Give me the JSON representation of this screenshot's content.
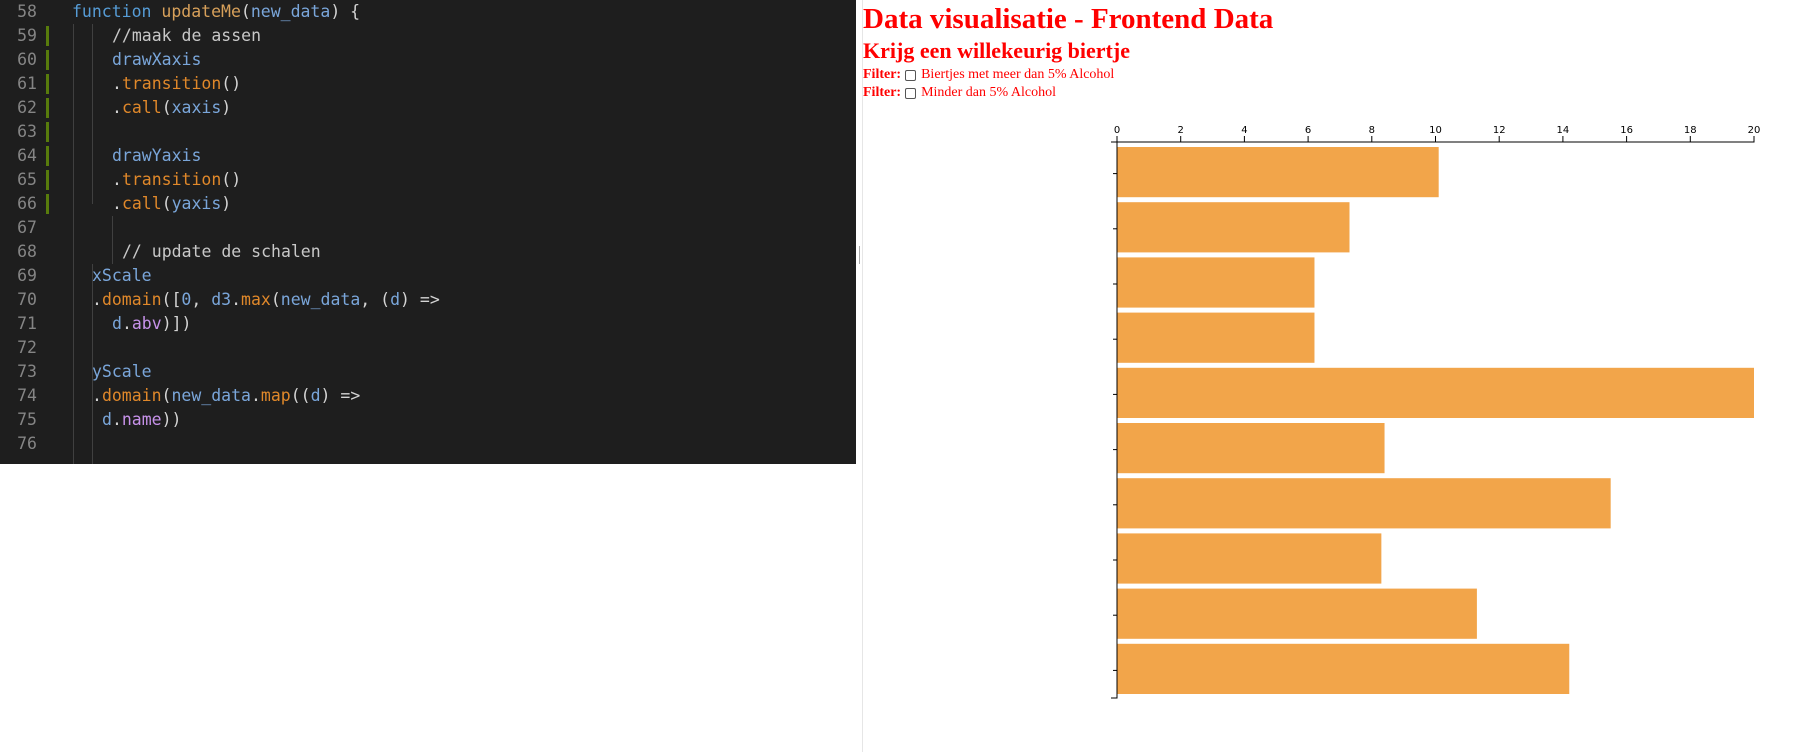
{
  "editor": {
    "lines": [
      {
        "n": "58",
        "tokens": [
          [
            "function ",
            "kw"
          ],
          [
            "updateMe",
            "fnname"
          ],
          [
            "(",
            "plain"
          ],
          [
            "new_data",
            "var"
          ],
          [
            ") {",
            "plain"
          ]
        ]
      },
      {
        "n": "59",
        "tokens": [
          [
            "//maak de assen",
            "comment"
          ]
        ]
      },
      {
        "n": "60",
        "tokens": [
          [
            "drawXaxis",
            "var"
          ]
        ]
      },
      {
        "n": "61",
        "tokens": [
          [
            ".",
            "plain"
          ],
          [
            "transition",
            "call"
          ],
          [
            "()",
            "plain"
          ]
        ]
      },
      {
        "n": "62",
        "tokens": [
          [
            ".",
            "plain"
          ],
          [
            "call",
            "call"
          ],
          [
            "(",
            "plain"
          ],
          [
            "xaxis",
            "var"
          ],
          [
            ")",
            "plain"
          ]
        ]
      },
      {
        "n": "63",
        "tokens": []
      },
      {
        "n": "64",
        "tokens": [
          [
            "drawYaxis",
            "var"
          ]
        ]
      },
      {
        "n": "65",
        "tokens": [
          [
            ".",
            "plain"
          ],
          [
            "transition",
            "call"
          ],
          [
            "()",
            "plain"
          ]
        ]
      },
      {
        "n": "66",
        "tokens": [
          [
            ".",
            "plain"
          ],
          [
            "call",
            "call"
          ],
          [
            "(",
            "plain"
          ],
          [
            "yaxis",
            "var"
          ],
          [
            ")",
            "plain"
          ]
        ]
      },
      {
        "n": "67",
        "tokens": []
      },
      {
        "n": "68",
        "tokens": [
          [
            "// update de schalen",
            "comment"
          ]
        ]
      },
      {
        "n": "69",
        "tokens": [
          [
            "xScale",
            "var"
          ]
        ]
      },
      {
        "n": "70",
        "tokens": [
          [
            ".",
            "plain"
          ],
          [
            "domain",
            "call"
          ],
          [
            "([",
            "plain"
          ],
          [
            "0",
            "num"
          ],
          [
            ", ",
            "plain"
          ],
          [
            "d3",
            "var"
          ],
          [
            ".",
            "plain"
          ],
          [
            "max",
            "call"
          ],
          [
            "(",
            "plain"
          ],
          [
            "new_data",
            "var"
          ],
          [
            ", (",
            "plain"
          ],
          [
            "d",
            "var"
          ],
          [
            ") =>",
            "plain"
          ]
        ]
      },
      {
        "n": "71",
        "tokens": [
          [
            "d",
            "var"
          ],
          [
            ".",
            "plain"
          ],
          [
            "abv",
            "method"
          ],
          [
            ")])",
            "plain"
          ]
        ]
      },
      {
        "n": "72",
        "tokens": []
      },
      {
        "n": "73",
        "tokens": [
          [
            "yScale",
            "var"
          ]
        ]
      },
      {
        "n": "74",
        "tokens": [
          [
            ".",
            "plain"
          ],
          [
            "domain",
            "call"
          ],
          [
            "(",
            "plain"
          ],
          [
            "new_data",
            "var"
          ],
          [
            ".",
            "plain"
          ],
          [
            "map",
            "call"
          ],
          [
            "((",
            "plain"
          ],
          [
            "d",
            "var"
          ],
          [
            ") =>",
            "plain"
          ]
        ]
      },
      {
        "n": "75",
        "tokens": [
          [
            "d",
            "var"
          ],
          [
            ".",
            "plain"
          ],
          [
            "name",
            "method"
          ],
          [
            "))",
            "plain"
          ]
        ]
      },
      {
        "n": "76",
        "tokens": []
      }
    ]
  },
  "page": {
    "title": "Data visualisatie - Frontend Data",
    "subtitle": "Krijg een willekeurig biertje",
    "filters": [
      {
        "label": "Filter:",
        "text": "Biertjes met meer dan 5% Alcohol",
        "checked": false
      },
      {
        "label": "Filter:",
        "text": "Minder dan 5% Alcohol",
        "checked": false
      }
    ]
  },
  "chart_data": {
    "type": "bar",
    "orientation": "horizontal",
    "xlim": [
      0,
      20
    ],
    "xticks": [
      "0",
      "2",
      "4",
      "6",
      "8",
      "10",
      "12",
      "14",
      "16",
      "18",
      "20"
    ],
    "values": [
      10.1,
      7.3,
      6.2,
      6.2,
      20,
      8.4,
      15.5,
      8.3,
      11.3,
      14.2
    ],
    "color": "#f2a54a",
    "grid": false
  }
}
